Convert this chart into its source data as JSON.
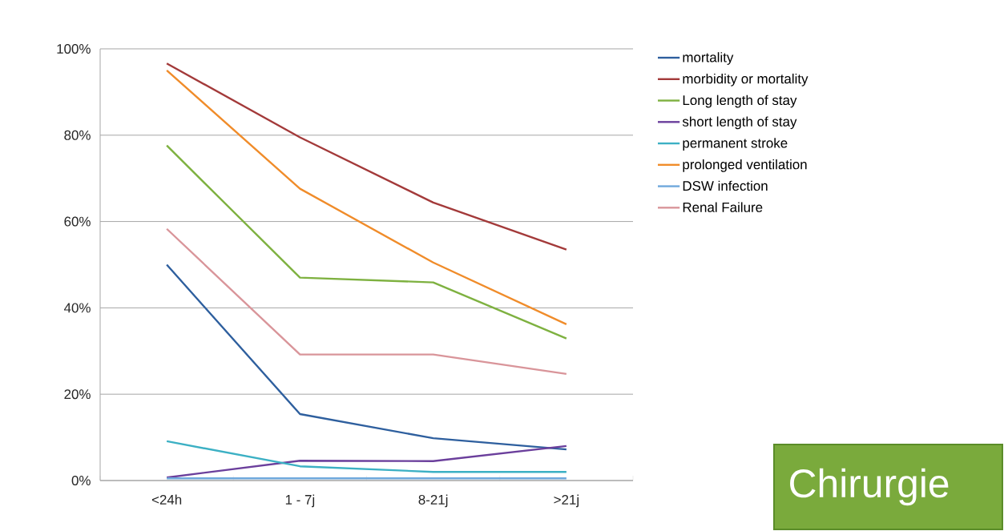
{
  "chart_data": {
    "type": "line",
    "categories": [
      "<24h",
      "1 - 7j",
      "8-21j",
      ">21j"
    ],
    "series": [
      {
        "name": "mortality",
        "color": "#2e5f9e",
        "values": [
          50,
          15.4,
          9.8,
          7.2
        ]
      },
      {
        "name": "morbidity or mortality",
        "color": "#a33a3a",
        "values": [
          96.6,
          79.5,
          64.4,
          53.5
        ]
      },
      {
        "name": "Long length of stay",
        "color": "#7eb140",
        "values": [
          77.6,
          47,
          45.9,
          32.9
        ]
      },
      {
        "name": "short length of stay",
        "color": "#6b3f9c",
        "values": [
          0.7,
          4.6,
          4.5,
          8
        ]
      },
      {
        "name": "permanent stroke",
        "color": "#3cb0c4",
        "values": [
          9.1,
          3.3,
          2,
          2
        ]
      },
      {
        "name": "prolonged ventilation",
        "color": "#f08c2a",
        "values": [
          95,
          67.6,
          50.5,
          36.2
        ]
      },
      {
        "name": "DSW infection",
        "color": "#6fa8dc",
        "values": [
          0.5,
          0.5,
          0.5,
          0.5
        ]
      },
      {
        "name": "Renal Failure",
        "color": "#d9959a",
        "values": [
          58.3,
          29.2,
          29.2,
          24.7
        ]
      }
    ],
    "ylim": [
      0,
      100
    ],
    "yticks": [
      {
        "value": 0,
        "label": "0%"
      },
      {
        "value": 20,
        "label": "20%"
      },
      {
        "value": 40,
        "label": "40%"
      },
      {
        "value": 60,
        "label": "60%"
      },
      {
        "value": 80,
        "label": "80%"
      },
      {
        "value": 100,
        "label": "100%"
      }
    ],
    "grid": "y",
    "legend": "right",
    "marker": "none",
    "line_style": "solid",
    "annotations": [
      "Chirurgie"
    ]
  }
}
